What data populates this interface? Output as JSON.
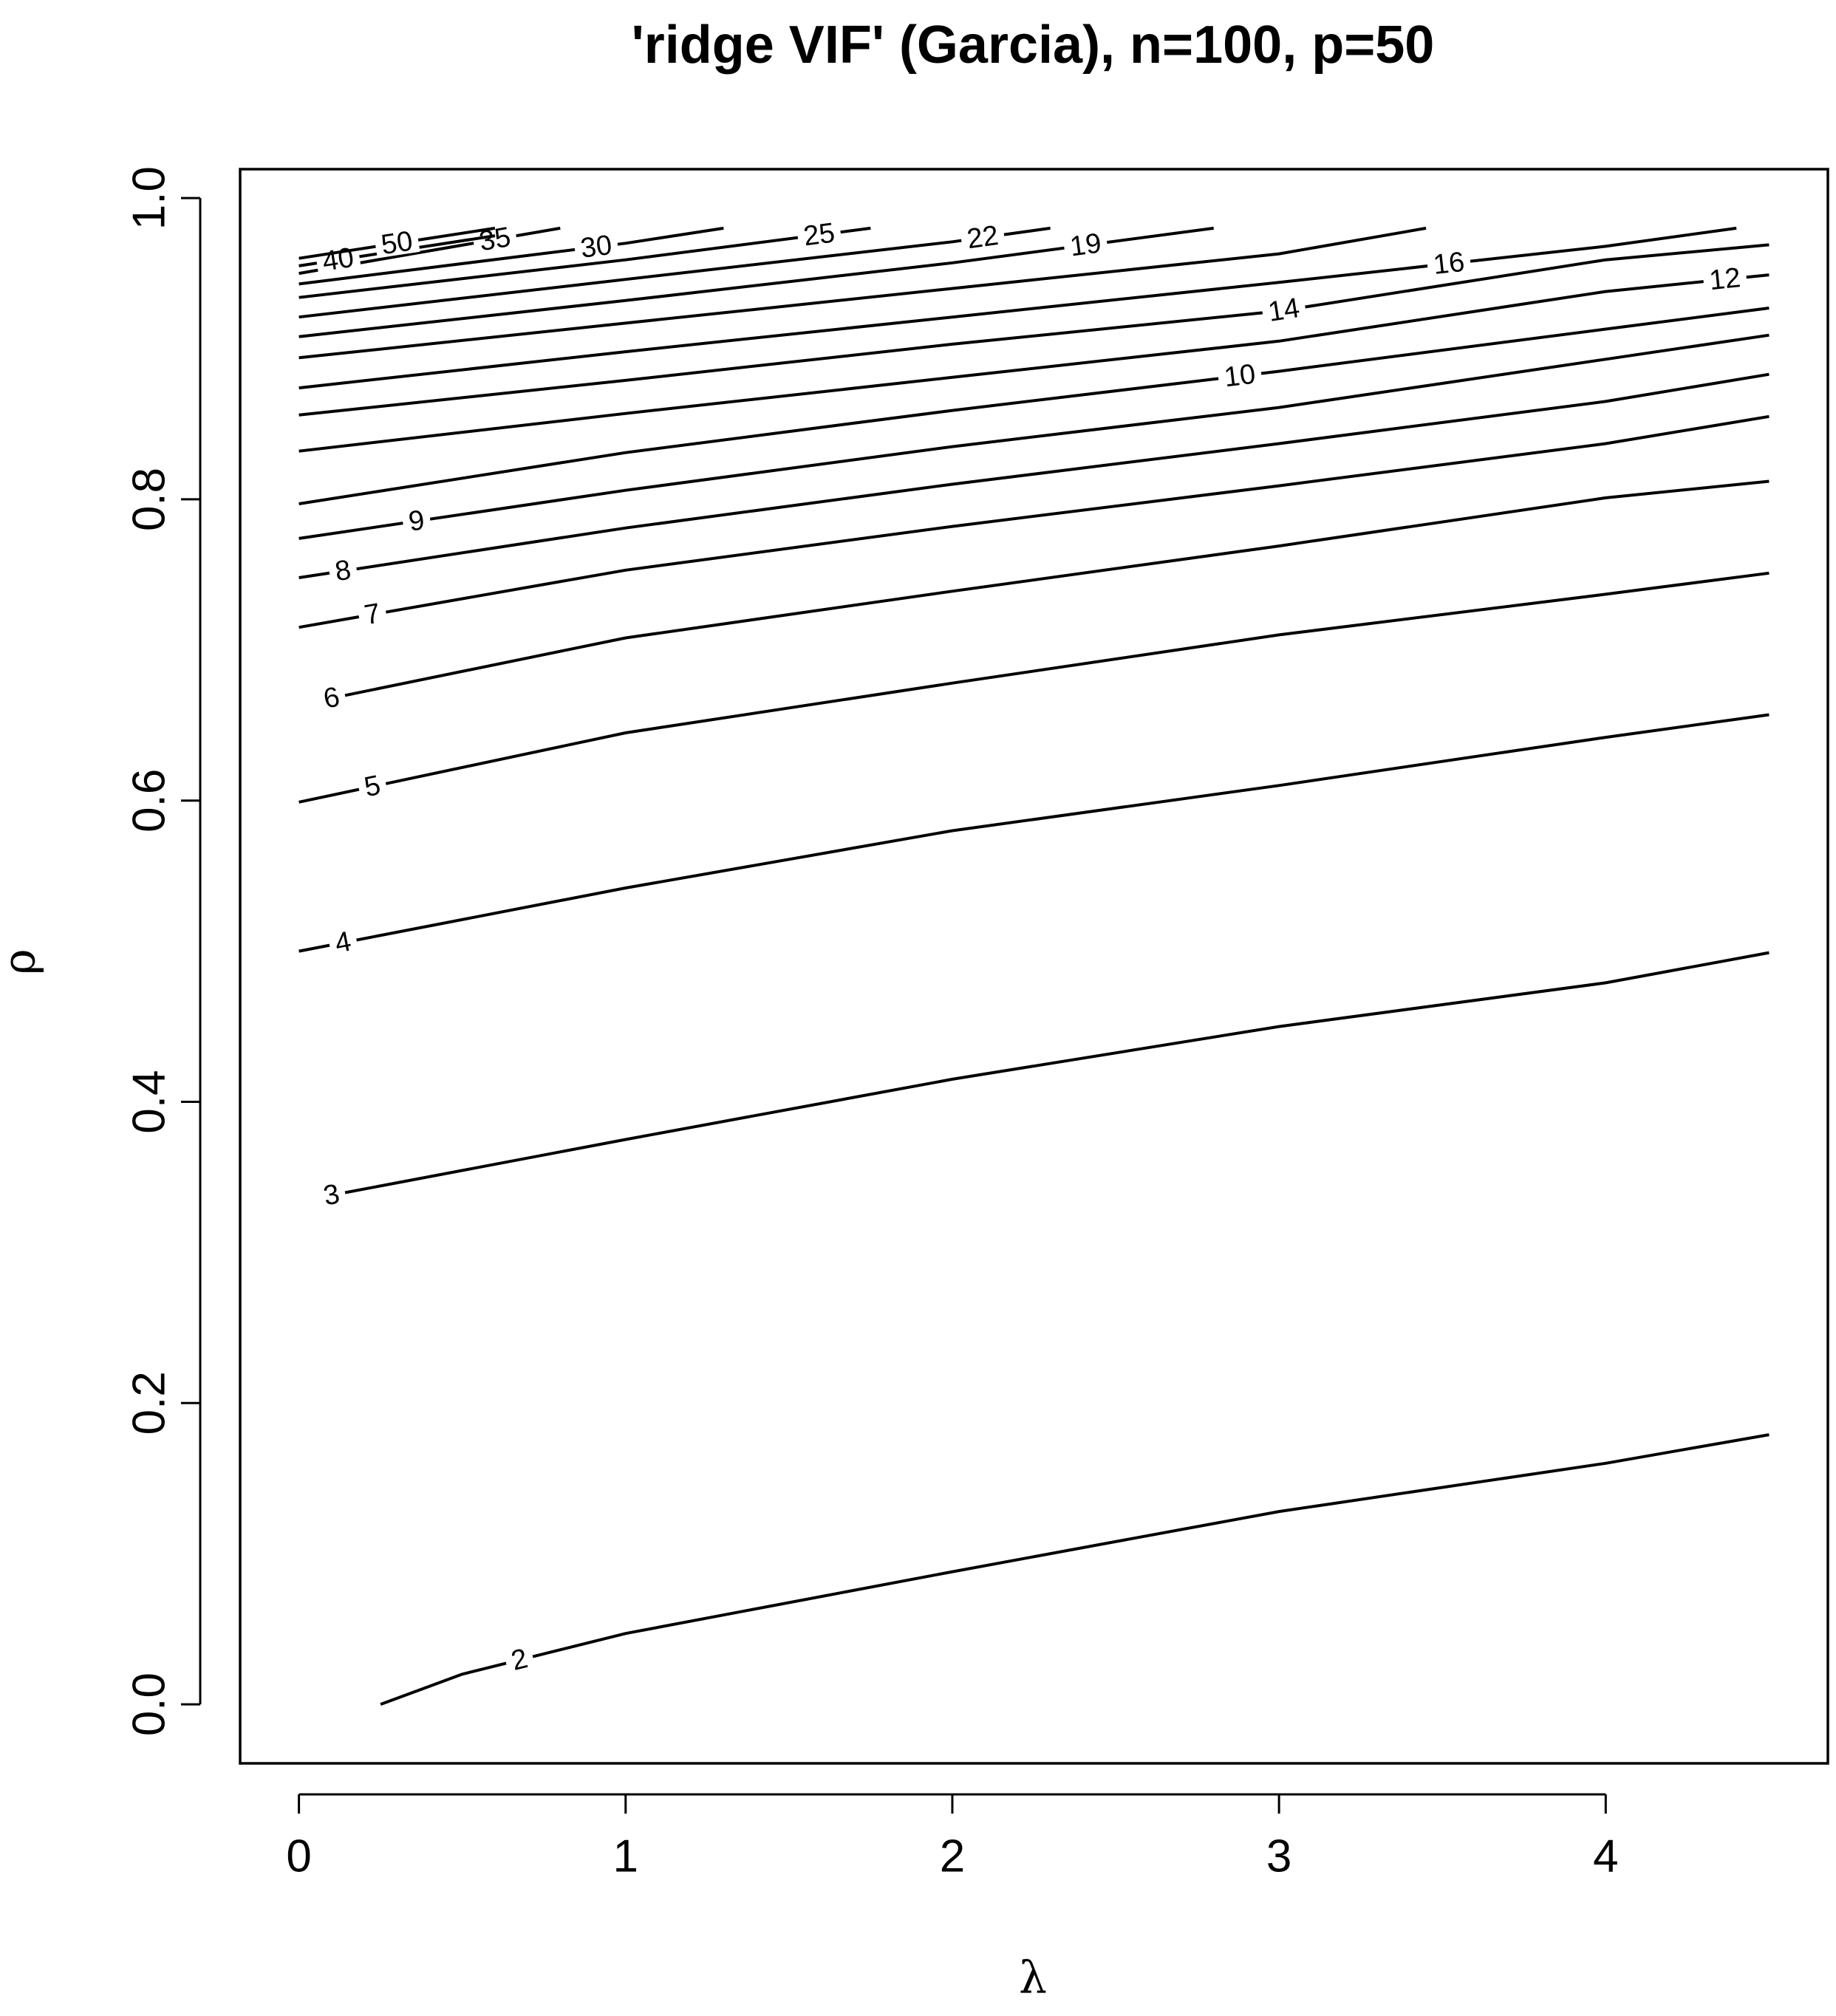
{
  "chart_data": {
    "type": "contour",
    "title": "'ridge VIF' (Garcia), n=100, p=50",
    "xlabel": "λ",
    "ylabel": "ρ",
    "xlim": [
      -0.18,
      4.68
    ],
    "ylim": [
      -0.0392,
      1.0192
    ],
    "xticks": [
      0,
      1,
      2,
      3,
      4
    ],
    "yticks": [
      {
        "value": 0,
        "label": "0.0"
      },
      {
        "value": 0.2,
        "label": "0.2"
      },
      {
        "value": 0.4,
        "label": "0.4"
      },
      {
        "value": 0.6,
        "label": "0.6"
      },
      {
        "value": 0.8,
        "label": "0.8"
      },
      {
        "value": 1,
        "label": "1.0"
      }
    ],
    "color": "#000000",
    "series": [
      {
        "name": "2",
        "x": [
          0.25,
          0.5,
          1,
          2,
          3,
          4,
          4.5
        ],
        "values": [
          0,
          0.02,
          0.047,
          0.088,
          0.128,
          0.16,
          0.179
        ]
      },
      {
        "name": "3",
        "x": [
          0.1,
          1,
          2,
          3,
          4,
          4.5
        ],
        "values": [
          0.338,
          0.375,
          0.415,
          0.45,
          0.479,
          0.499
        ]
      },
      {
        "name": "4",
        "x": [
          0,
          1,
          2,
          3,
          4,
          4.5
        ],
        "values": [
          0.5,
          0.542,
          0.58,
          0.61,
          0.642,
          0.657
        ]
      },
      {
        "name": "5",
        "x": [
          0,
          1,
          2,
          3,
          4,
          4.5
        ],
        "values": [
          0.599,
          0.645,
          0.678,
          0.71,
          0.737,
          0.751
        ]
      },
      {
        "name": "6",
        "x": [
          0.1,
          1,
          2,
          3,
          4,
          4.5
        ],
        "values": [
          0.668,
          0.708,
          0.739,
          0.769,
          0.801,
          0.812
        ]
      },
      {
        "name": "7",
        "x": [
          0,
          1,
          2,
          3,
          4,
          4.5
        ],
        "values": [
          0.715,
          0.753,
          0.782,
          0.809,
          0.837,
          0.855
        ]
      },
      {
        "name": "8",
        "x": [
          0,
          1,
          2,
          3,
          4,
          4.5
        ],
        "values": [
          0.748,
          0.781,
          0.81,
          0.837,
          0.865,
          0.883
        ]
      },
      {
        "name": "9",
        "x": [
          0,
          1,
          2,
          3,
          4,
          4.5
        ],
        "values": [
          0.774,
          0.806,
          0.835,
          0.861,
          0.893,
          0.909
        ]
      },
      {
        "name": "10",
        "x": [
          0,
          1,
          2,
          3,
          4,
          4.5
        ],
        "values": [
          0.797,
          0.831,
          0.859,
          0.885,
          0.913,
          0.927
        ]
      },
      {
        "name": "12",
        "x": [
          0,
          1,
          2,
          3,
          4,
          4.5
        ],
        "values": [
          0.832,
          0.857,
          0.881,
          0.905,
          0.938,
          0.949
        ]
      },
      {
        "name": "14",
        "x": [
          0,
          1,
          2,
          3,
          4,
          4.5
        ],
        "values": [
          0.856,
          0.879,
          0.903,
          0.925,
          0.959,
          0.969
        ]
      },
      {
        "name": "16",
        "x": [
          0,
          1,
          2,
          3,
          4,
          4.4
        ],
        "values": [
          0.874,
          0.898,
          0.921,
          0.944,
          0.968,
          0.98
        ]
      },
      {
        "x": [
          0,
          1,
          2,
          3,
          3.45
        ],
        "values": [
          0.894,
          0.917,
          0.94,
          0.963,
          0.98
        ]
      },
      {
        "name": "19",
        "x": [
          0,
          1,
          2,
          2.8
        ],
        "values": [
          0.908,
          0.932,
          0.957,
          0.98
        ]
      },
      {
        "name": "22",
        "x": [
          0,
          1,
          2,
          2.3
        ],
        "values": [
          0.921,
          0.946,
          0.971,
          0.98
        ]
      },
      {
        "name": "25",
        "x": [
          0,
          1,
          1.75
        ],
        "values": [
          0.934,
          0.959,
          0.98
        ]
      },
      {
        "name": "30",
        "x": [
          0,
          1,
          1.3
        ],
        "values": [
          0.943,
          0.97,
          0.98
        ]
      },
      {
        "name": "35",
        "x": [
          0,
          0.8
        ],
        "values": [
          0.95,
          0.98
        ]
      },
      {
        "name": "40",
        "x": [
          0,
          0.6
        ],
        "values": [
          0.955,
          0.975
        ]
      },
      {
        "name": "50",
        "x": [
          0,
          0.6
        ],
        "values": [
          0.96,
          0.98
        ]
      }
    ]
  }
}
